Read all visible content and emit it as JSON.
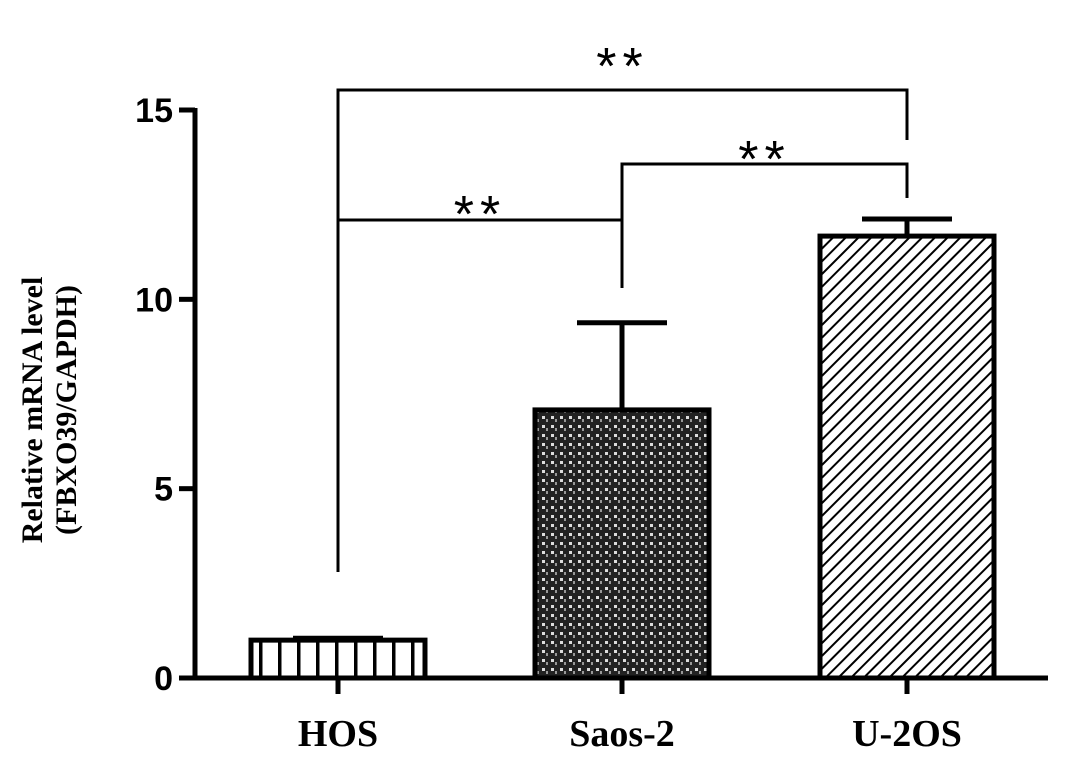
{
  "chart_data": {
    "type": "bar",
    "ylabel": [
      "Relative mRNA level",
      "(FBXO39/GAPDH)"
    ],
    "categories": [
      "HOS",
      "Saos-2",
      "U-2OS"
    ],
    "values": [
      1.0,
      7.08,
      11.67
    ],
    "errors": [
      0.05,
      2.3,
      0.45
    ],
    "patterns": [
      "vertical",
      "grid",
      "diagonal"
    ],
    "color": "#000000",
    "ylim": [
      0,
      15
    ],
    "yticks": [
      0,
      5,
      10,
      15
    ],
    "significance": [
      {
        "from": 0,
        "to": 1,
        "label": "**"
      },
      {
        "from": 1,
        "to": 2,
        "label": "**"
      },
      {
        "from": 0,
        "to": 2,
        "label": "**"
      }
    ]
  }
}
